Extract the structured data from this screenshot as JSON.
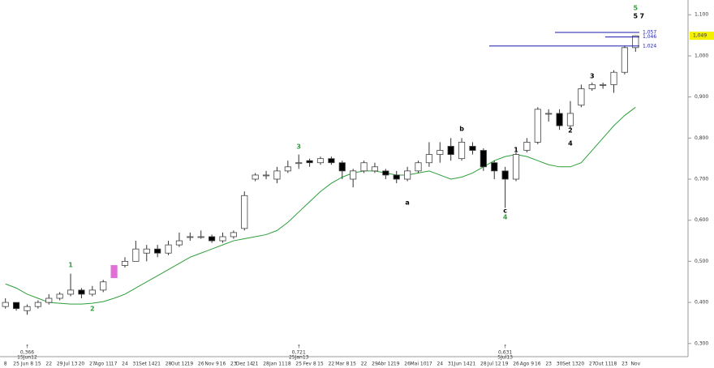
{
  "chart_data": {
    "type": "candlestick",
    "categories": [
      "8",
      "25",
      "Jun 8",
      "15",
      "22",
      "29",
      "Jul 13",
      "20",
      "27",
      "Ago 11",
      "17",
      "24",
      "31",
      "Set 14",
      "21",
      "28",
      "Out 12",
      "19",
      "26",
      "Nov 9",
      "16",
      "23",
      "Dez 14",
      "21",
      "28",
      "Jan 11",
      "18",
      "25",
      "Fev 8",
      "15",
      "22",
      "Mar 8",
      "15",
      "22",
      "29",
      "Abr 12",
      "19",
      "26",
      "Mai 10",
      "17",
      "24",
      "31",
      "Jun 14",
      "21",
      "28",
      "Jul 12",
      "19",
      "26",
      "Ago 9",
      "16",
      "23",
      "30",
      "Set 13",
      "20",
      "27",
      "Out 11",
      "18",
      "23",
      "Nov"
    ],
    "open": [
      0.39,
      0.4,
      0.38,
      0.39,
      0.4,
      0.41,
      0.42,
      0.43,
      0.42,
      0.43,
      0.46,
      0.49,
      0.5,
      0.52,
      0.53,
      0.52,
      0.54,
      0.56,
      0.56,
      0.56,
      0.55,
      0.56,
      0.58,
      0.7,
      0.71,
      0.7,
      0.72,
      0.74,
      0.745,
      0.74,
      0.75,
      0.74,
      0.7,
      0.72,
      0.72,
      0.72,
      0.71,
      0.7,
      0.72,
      0.74,
      0.76,
      0.78,
      0.75,
      0.78,
      0.77,
      0.74,
      0.72,
      0.7,
      0.77,
      0.79,
      0.86,
      0.86,
      0.83,
      0.88,
      0.92,
      0.93,
      0.93,
      0.96,
      1.02
    ],
    "high": [
      0.41,
      0.4,
      0.395,
      0.405,
      0.42,
      0.425,
      0.47,
      0.435,
      0.44,
      0.455,
      0.49,
      0.51,
      0.55,
      0.54,
      0.54,
      0.55,
      0.57,
      0.57,
      0.575,
      0.565,
      0.57,
      0.575,
      0.67,
      0.715,
      0.72,
      0.73,
      0.745,
      0.76,
      0.75,
      0.755,
      0.755,
      0.745,
      0.725,
      0.745,
      0.74,
      0.725,
      0.72,
      0.73,
      0.745,
      0.79,
      0.79,
      0.8,
      0.8,
      0.79,
      0.775,
      0.745,
      0.73,
      0.765,
      0.8,
      0.875,
      0.87,
      0.87,
      0.89,
      0.93,
      0.935,
      0.935,
      0.965,
      1.025,
      1.05
    ],
    "low": [
      0.385,
      0.38,
      0.37,
      0.385,
      0.395,
      0.405,
      0.415,
      0.41,
      0.415,
      0.425,
      0.46,
      0.485,
      0.5,
      0.5,
      0.51,
      0.515,
      0.535,
      0.55,
      0.555,
      0.545,
      0.545,
      0.555,
      0.575,
      0.695,
      0.7,
      0.69,
      0.715,
      0.725,
      0.73,
      0.735,
      0.735,
      0.7,
      0.68,
      0.715,
      0.715,
      0.7,
      0.69,
      0.695,
      0.715,
      0.73,
      0.74,
      0.745,
      0.745,
      0.76,
      0.72,
      0.7,
      0.63,
      0.695,
      0.765,
      0.785,
      0.84,
      0.82,
      0.825,
      0.875,
      0.915,
      0.92,
      0.91,
      0.955,
      1.01
    ],
    "close": [
      0.4,
      0.385,
      0.39,
      0.4,
      0.41,
      0.42,
      0.43,
      0.42,
      0.43,
      0.45,
      0.49,
      0.5,
      0.53,
      0.53,
      0.52,
      0.54,
      0.55,
      0.56,
      0.56,
      0.55,
      0.56,
      0.57,
      0.66,
      0.71,
      0.71,
      0.72,
      0.73,
      0.74,
      0.74,
      0.75,
      0.74,
      0.72,
      0.72,
      0.74,
      0.73,
      0.71,
      0.7,
      0.72,
      0.74,
      0.76,
      0.77,
      0.76,
      0.79,
      0.77,
      0.73,
      0.72,
      0.7,
      0.76,
      0.79,
      0.87,
      0.86,
      0.83,
      0.86,
      0.92,
      0.93,
      0.93,
      0.96,
      1.02,
      1.049
    ],
    "up_color": "#ffffff",
    "down_color": "#000000",
    "highlight_color": "#e070d8",
    "moving_average": {
      "color": "#2e9e3a",
      "values": [
        0.445,
        0.435,
        0.42,
        0.41,
        0.4,
        0.398,
        0.396,
        0.396,
        0.398,
        0.402,
        0.41,
        0.42,
        0.435,
        0.45,
        0.465,
        0.48,
        0.495,
        0.51,
        0.52,
        0.53,
        0.54,
        0.55,
        0.555,
        0.56,
        0.565,
        0.575,
        0.595,
        0.62,
        0.645,
        0.67,
        0.69,
        0.705,
        0.715,
        0.72,
        0.72,
        0.715,
        0.71,
        0.71,
        0.715,
        0.72,
        0.71,
        0.7,
        0.705,
        0.715,
        0.73,
        0.745,
        0.755,
        0.76,
        0.755,
        0.745,
        0.735,
        0.73,
        0.73,
        0.74,
        0.77,
        0.8,
        0.83,
        0.855,
        0.875
      ]
    },
    "ylim": [
      0.268,
      1.136
    ],
    "yticks": [
      {
        "value": 0.3,
        "label": "0,300"
      },
      {
        "value": 0.4,
        "label": "0,400"
      },
      {
        "value": 0.5,
        "label": "0,500"
      },
      {
        "value": 0.6,
        "label": "0,600"
      },
      {
        "value": 0.7,
        "label": "0,700"
      },
      {
        "value": 0.8,
        "label": "0,800"
      },
      {
        "value": 0.9,
        "label": "0,900"
      },
      {
        "value": 1.0,
        "label": "1,000"
      },
      {
        "value": 1.1,
        "label": "1,100"
      }
    ],
    "levels": [
      {
        "value": 1.057,
        "label": "1,057"
      },
      {
        "value": 1.046,
        "label": "1,046"
      },
      {
        "value": 1.024,
        "label": "1,024"
      }
    ],
    "level_color": "#1a1aa8",
    "last_price": {
      "value": 1.049,
      "label": "1,049"
    },
    "markers": [
      {
        "value": {
          "value": 0.366,
          "label": "0,366"
        },
        "date": "15Jun12"
      },
      {
        "value": {
          "value": 0.721,
          "label": "0,721"
        },
        "date": "25Jan13"
      },
      {
        "value": {
          "value": 0.631,
          "label": "0,631"
        },
        "date": "5Jul13"
      }
    ],
    "annotations": [
      {
        "text": "1",
        "color": "#2e9e3a"
      },
      {
        "text": "2",
        "color": "#2e9e3a"
      },
      {
        "text": "3",
        "color": "#2e9e3a"
      },
      {
        "text": "a",
        "color": "#000000"
      },
      {
        "text": "b",
        "color": "#000000"
      },
      {
        "text": "c",
        "color": "#000000"
      },
      {
        "text": "4",
        "color": "#2e9e3a"
      },
      {
        "text": "1",
        "color": "#000000"
      },
      {
        "text": "2",
        "color": "#000000"
      },
      {
        "text": "3",
        "color": "#000000"
      },
      {
        "text": "4",
        "color": "#000000"
      },
      {
        "text": "5",
        "color": "#2e9e3a"
      },
      {
        "text": "5",
        "color": "#000000"
      },
      {
        "text": "7",
        "color": "#000000"
      }
    ]
  }
}
